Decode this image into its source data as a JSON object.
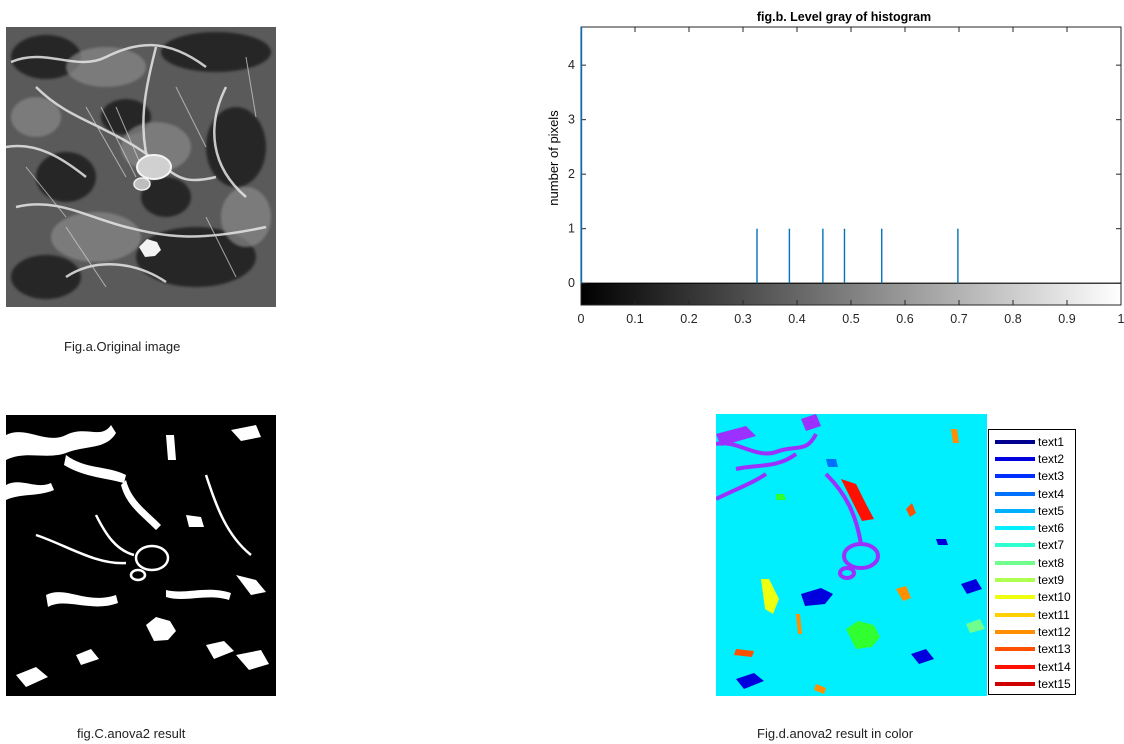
{
  "captions": {
    "fig_a": "Fig.a.Original image",
    "fig_c": "fig.C.anova2 result",
    "fig_d": "Fig.d.anova2 result in color"
  },
  "chart_data": {
    "type": "bar",
    "title": "fig.b.  Level gray of histogram",
    "xlabel": "",
    "ylabel": "number of pixels",
    "xlim": [
      0,
      1
    ],
    "ylim": [
      -0.4,
      4.7
    ],
    "xticks": [
      0,
      0.1,
      0.2,
      0.3,
      0.4,
      0.5,
      0.6,
      0.7,
      0.8,
      0.9,
      1
    ],
    "xtick_labels": [
      "0",
      "0.1",
      "0.2",
      "0.3",
      "0.4",
      "0.5",
      "0.6",
      "0.7",
      "0.8",
      "0.9",
      "1"
    ],
    "yticks": [
      0,
      1,
      2,
      3,
      4
    ],
    "ytick_labels": [
      "0",
      "1",
      "2",
      "3",
      "4"
    ],
    "grid": false,
    "colorbar": "grayscale",
    "series": [
      {
        "x": [
          0,
          0.325,
          0.385,
          0.447,
          0.487,
          0.556,
          0.697
        ],
        "values": [
          5,
          1,
          1,
          1,
          1,
          1,
          1
        ],
        "color": "#0072bd"
      }
    ]
  },
  "legend": {
    "entries": [
      {
        "label": "text1",
        "color": "#00008f"
      },
      {
        "label": "text2",
        "color": "#0000df"
      },
      {
        "label": "text3",
        "color": "#0030ff"
      },
      {
        "label": "text4",
        "color": "#0070ff"
      },
      {
        "label": "text5",
        "color": "#00afff"
      },
      {
        "label": "text6",
        "color": "#00efff"
      },
      {
        "label": "text7",
        "color": "#30ffcf"
      },
      {
        "label": "text8",
        "color": "#70ff8f"
      },
      {
        "label": "text9",
        "color": "#afff50"
      },
      {
        "label": "text10",
        "color": "#efff10"
      },
      {
        "label": "text11",
        "color": "#ffcf00"
      },
      {
        "label": "text12",
        "color": "#ff8f00"
      },
      {
        "label": "text13",
        "color": "#ff5000"
      },
      {
        "label": "text14",
        "color": "#ff1000"
      },
      {
        "label": "text15",
        "color": "#cf0000"
      }
    ]
  },
  "colors": {
    "sem_background": "#5a5a5a",
    "sem_fiber": "#d8d8d8",
    "binary_background": "#000000",
    "binary_foreground": "#ffffff",
    "color_background": "#00efff",
    "color_network": "#9b30ff"
  }
}
